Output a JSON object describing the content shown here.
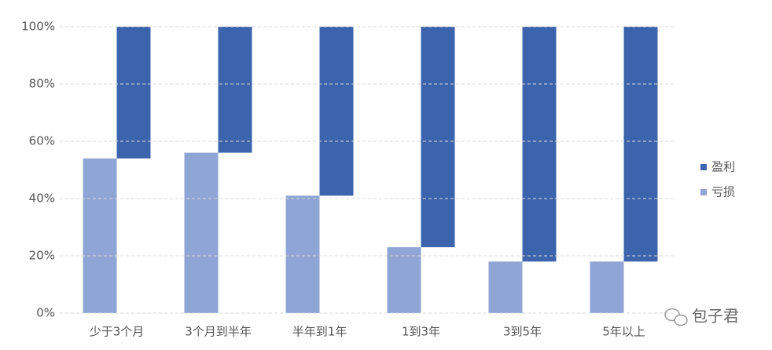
{
  "chart_data": {
    "type": "bar",
    "stacked": true,
    "categories": [
      "少于3个月",
      "3个月到半年",
      "半年到1年",
      "1到3年",
      "3到5年",
      "5年以上"
    ],
    "series": [
      {
        "name": "亏损",
        "color": "#8fa5d5",
        "values": [
          54,
          56,
          41,
          23,
          18,
          18
        ]
      },
      {
        "name": "盈利",
        "color": "#3c64ad",
        "values": [
          46,
          44,
          59,
          77,
          82,
          82
        ]
      }
    ],
    "ylim": [
      0,
      100
    ],
    "yticks": [
      {
        "value": 0,
        "label": "0%"
      },
      {
        "value": 20,
        "label": "20%"
      },
      {
        "value": 40,
        "label": "40%"
      },
      {
        "value": 60,
        "label": "60%"
      },
      {
        "value": 80,
        "label": "80%"
      },
      {
        "value": 100,
        "label": "100%"
      }
    ],
    "grid": true,
    "legend": "right",
    "watermark": "包子君"
  }
}
